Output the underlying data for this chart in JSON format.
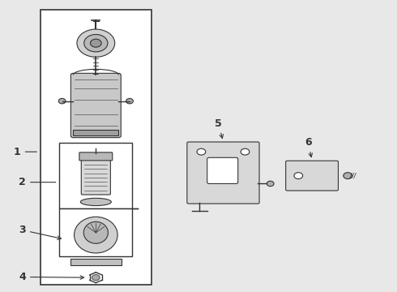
{
  "bg_color": "#e8e8e8",
  "box_bg": "#ffffff",
  "line_color": "#333333",
  "title": ""
}
